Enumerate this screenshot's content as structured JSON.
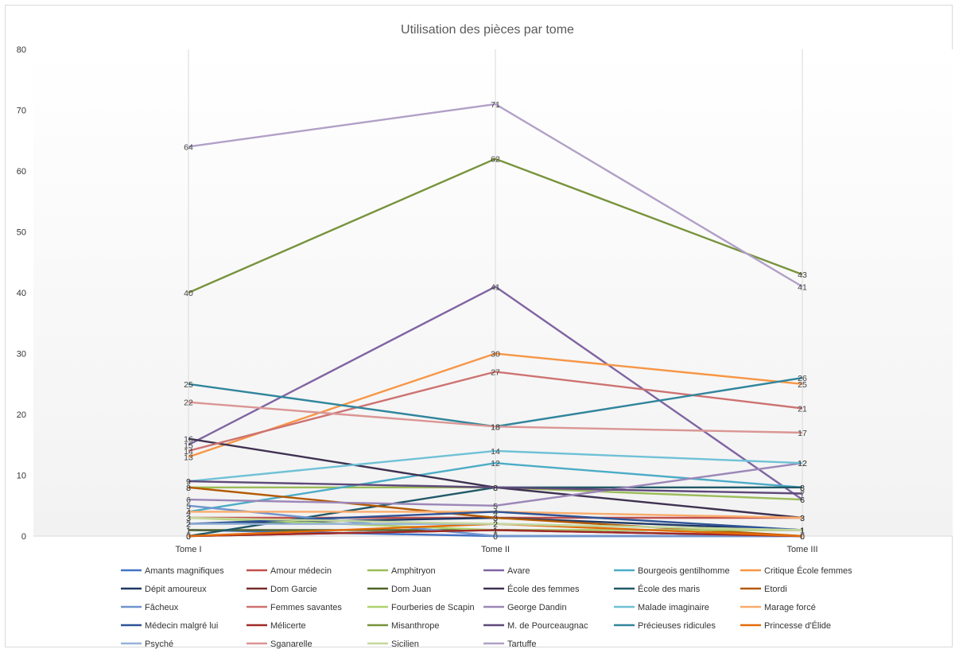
{
  "chart_data": {
    "type": "line",
    "title": "Utilisation des pièces par tome",
    "xlabel": "",
    "ylabel": "",
    "categories": [
      "Tome I",
      "Tome II",
      "Tome III"
    ],
    "ylim": [
      0,
      80
    ],
    "yticks": [
      0,
      10,
      20,
      30,
      40,
      50,
      60,
      70,
      80
    ],
    "grid": "vertical",
    "legend_position": "bottom",
    "data_labels": true,
    "series": [
      {
        "name": "Amants magnifiques",
        "color": "#4472c4",
        "values": [
          1,
          0,
          0
        ]
      },
      {
        "name": "Amour médecin",
        "color": "#c0504d",
        "values": [
          3,
          3,
          3
        ]
      },
      {
        "name": "Amphitryon",
        "color": "#9bbb59",
        "values": [
          8,
          8,
          6
        ]
      },
      {
        "name": "Avare",
        "color": "#8064a2",
        "values": [
          15,
          41,
          6
        ]
      },
      {
        "name": "Bourgeois gentilhomme",
        "color": "#4bacc6",
        "values": [
          4,
          12,
          8
        ]
      },
      {
        "name": "Critique École femmes",
        "color": "#f79646",
        "values": [
          13,
          30,
          25
        ]
      },
      {
        "name": "Dépit amoureux",
        "color": "#1f3864",
        "values": [
          2,
          3,
          1
        ]
      },
      {
        "name": "Dom Garcie",
        "color": "#772c2a",
        "values": [
          0,
          1,
          0
        ]
      },
      {
        "name": "Dom Juan",
        "color": "#4f6228",
        "values": [
          1,
          1,
          1
        ]
      },
      {
        "name": "École des femmes",
        "color": "#3f3151",
        "values": [
          16,
          8,
          3
        ]
      },
      {
        "name": "École des maris",
        "color": "#215967",
        "values": [
          0,
          8,
          8
        ]
      },
      {
        "name": "Etordi",
        "color": "#b35900",
        "values": [
          8,
          3,
          0
        ]
      },
      {
        "name": "Fâcheux",
        "color": "#7094cd",
        "values": [
          5,
          0,
          0
        ]
      },
      {
        "name": "Femmes savantes",
        "color": "#cd7371",
        "values": [
          14,
          27,
          21
        ]
      },
      {
        "name": "Fourberies de Scapin",
        "color": "#afd16f",
        "values": [
          3,
          1,
          1
        ]
      },
      {
        "name": "George Dandin",
        "color": "#9c87b8",
        "values": [
          6,
          5,
          12
        ]
      },
      {
        "name": "Malade imaginaire",
        "color": "#6fc1d6",
        "values": [
          9,
          14,
          12
        ]
      },
      {
        "name": "Marage forcé",
        "color": "#f9ab6b",
        "values": [
          4,
          4,
          3
        ]
      },
      {
        "name": "Médecin malgré lui",
        "color": "#2e5496",
        "values": [
          2,
          4,
          1
        ]
      },
      {
        "name": "Mélicerte",
        "color": "#a12a27",
        "values": [
          0,
          1,
          0
        ]
      },
      {
        "name": "Misanthrope",
        "color": "#77933c",
        "values": [
          40,
          62,
          43
        ]
      },
      {
        "name": "M. de Pourceaugnac",
        "color": "#5f497a",
        "values": [
          9,
          8,
          7
        ]
      },
      {
        "name": "Précieuses ridicules",
        "color": "#31859c",
        "values": [
          25,
          18,
          26
        ]
      },
      {
        "name": "Princesse d'Élide",
        "color": "#e36c09",
        "values": [
          0,
          2,
          0
        ]
      },
      {
        "name": "Psyché",
        "color": "#95b3d7",
        "values": [
          2,
          2,
          1
        ]
      },
      {
        "name": "Sganarelle",
        "color": "#da9694",
        "values": [
          22,
          18,
          17
        ]
      },
      {
        "name": "Sicilien",
        "color": "#c4d79b",
        "values": [
          3,
          2,
          1
        ]
      },
      {
        "name": "Tartuffe",
        "color": "#b1a0c7",
        "values": [
          64,
          71,
          41
        ]
      }
    ]
  }
}
